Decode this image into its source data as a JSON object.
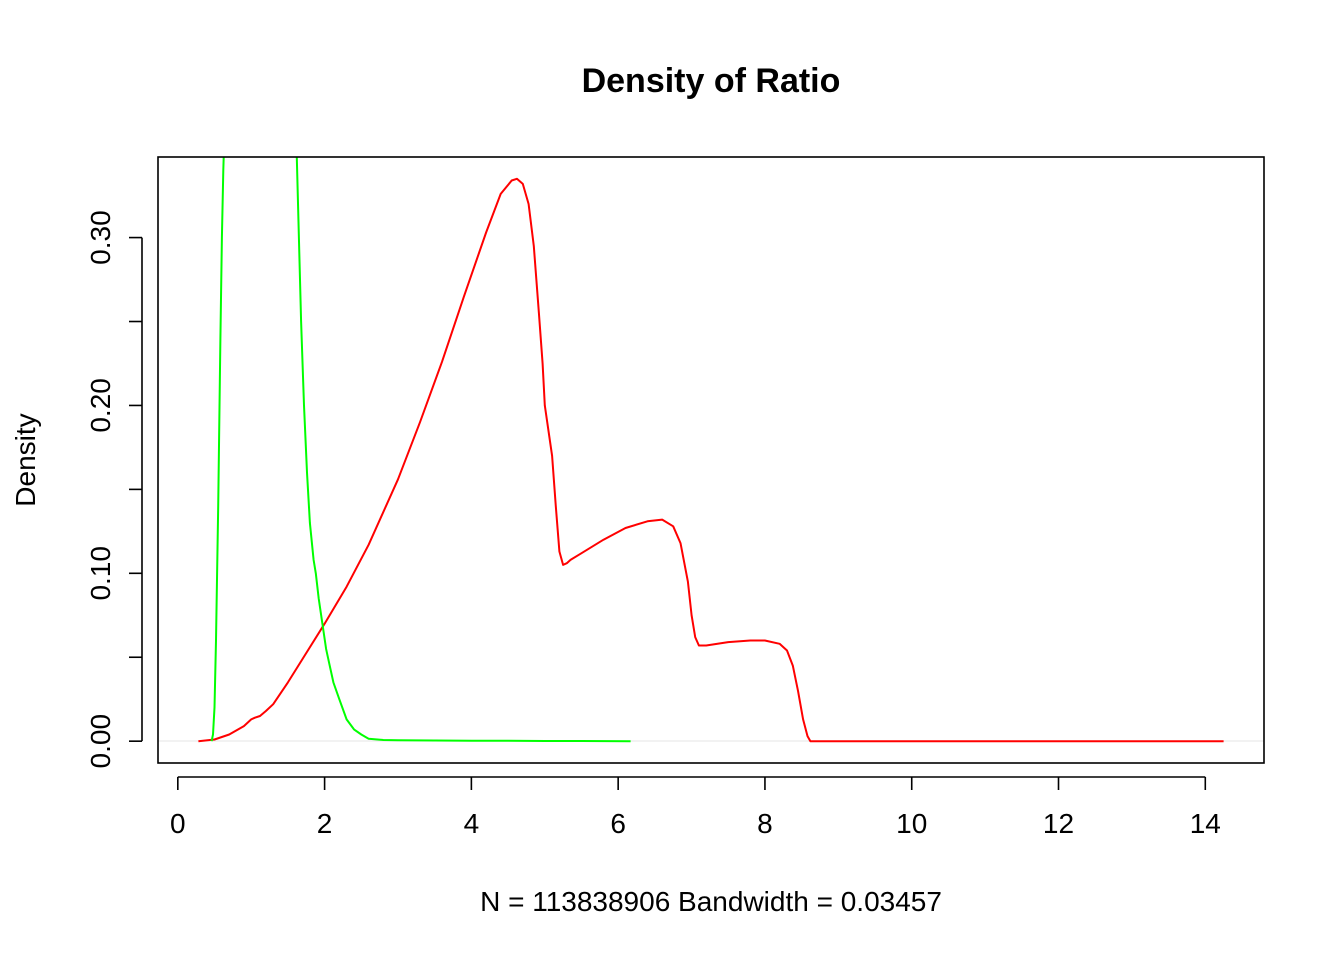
{
  "chart_data": {
    "type": "line",
    "title": "Density of Ratio",
    "xlabel": "N = 113838906   Bandwidth = 0.03457",
    "ylabel": "Density",
    "xlim": [
      -0.27,
      14.8
    ],
    "ylim": [
      -0.013,
      0.348
    ],
    "x_ticks": [
      0,
      2,
      4,
      6,
      8,
      10,
      12,
      14
    ],
    "x_tick_labels": [
      "0",
      "2",
      "4",
      "6",
      "8",
      "10",
      "12",
      "14"
    ],
    "y_ticks": [
      0.0,
      0.05,
      0.1,
      0.15,
      0.2,
      0.25,
      0.3
    ],
    "y_tick_labels": [
      "0.00",
      "",
      "0.10",
      "",
      "0.20",
      "",
      "0.30"
    ],
    "grid": false,
    "series": [
      {
        "color": "#ff0000",
        "x": [
          0.28,
          0.5,
          0.7,
          0.9,
          1.0,
          1.05,
          1.12,
          1.2,
          1.3,
          1.5,
          1.7,
          2.0,
          2.3,
          2.6,
          3.0,
          3.3,
          3.6,
          3.9,
          4.2,
          4.4,
          4.55,
          4.62,
          4.7,
          4.78,
          4.85,
          4.92,
          4.97,
          5.0,
          5.1,
          5.15,
          5.2,
          5.25,
          5.3,
          5.35,
          5.5,
          5.8,
          6.1,
          6.4,
          6.6,
          6.75,
          6.85,
          6.95,
          7.0,
          7.05,
          7.1,
          7.2,
          7.5,
          7.8,
          8.0,
          8.2,
          8.3,
          8.38,
          8.45,
          8.52,
          8.58,
          8.62,
          8.7,
          9.0,
          10.0,
          11.0,
          12.0,
          13.0,
          14.25
        ],
        "y": [
          0.0,
          0.001,
          0.004,
          0.009,
          0.013,
          0.014,
          0.015,
          0.018,
          0.022,
          0.035,
          0.049,
          0.07,
          0.092,
          0.117,
          0.156,
          0.19,
          0.226,
          0.265,
          0.303,
          0.326,
          0.334,
          0.335,
          0.332,
          0.32,
          0.295,
          0.255,
          0.225,
          0.2,
          0.17,
          0.14,
          0.113,
          0.105,
          0.106,
          0.108,
          0.112,
          0.12,
          0.127,
          0.131,
          0.132,
          0.128,
          0.118,
          0.095,
          0.075,
          0.062,
          0.057,
          0.057,
          0.059,
          0.06,
          0.06,
          0.058,
          0.054,
          0.045,
          0.03,
          0.013,
          0.003,
          0.0,
          0.0,
          0.0,
          0.0,
          0.0,
          0.0,
          0.0,
          0.0
        ]
      },
      {
        "color": "#00ff00",
        "x": [
          0.46,
          0.48,
          0.5,
          0.52,
          0.55,
          0.58,
          0.6,
          0.62,
          0.64,
          0.66,
          1.6,
          1.62,
          1.65,
          1.68,
          1.72,
          1.76,
          1.8,
          1.85,
          1.88,
          1.92,
          1.97,
          2.02,
          2.07,
          2.12,
          2.2,
          2.3,
          2.4,
          2.5,
          2.6,
          2.8,
          3.0,
          3.5,
          4.0,
          4.5,
          5.0,
          5.5,
          6.17
        ],
        "y": [
          0.0,
          0.004,
          0.02,
          0.06,
          0.14,
          0.24,
          0.3,
          0.34,
          0.37,
          0.4,
          0.4,
          0.35,
          0.3,
          0.25,
          0.2,
          0.16,
          0.13,
          0.108,
          0.1,
          0.085,
          0.07,
          0.055,
          0.045,
          0.035,
          0.025,
          0.013,
          0.007,
          0.004,
          0.0015,
          0.0007,
          0.0005,
          0.0004,
          0.0003,
          0.0002,
          0.0001,
          0.0001,
          0.0
        ]
      }
    ]
  }
}
